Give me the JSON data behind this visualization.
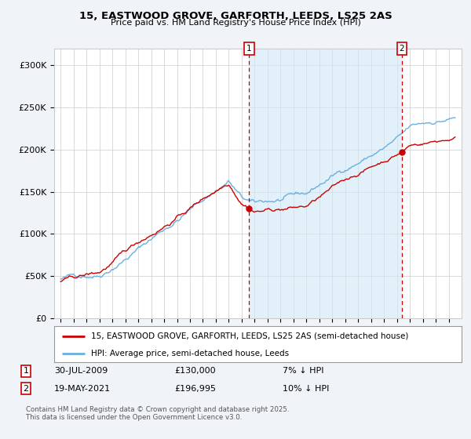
{
  "title_line1": "15, EASTWOOD GROVE, GARFORTH, LEEDS, LS25 2AS",
  "title_line2": "Price paid vs. HM Land Registry's House Price Index (HPI)",
  "hpi_color": "#6ab0de",
  "price_color": "#cc0000",
  "shade_color": "#d0e8f5",
  "background_color": "#f0f4f8",
  "plot_bg_color": "#ffffff",
  "grid_color": "#cccccc",
  "ylim": [
    0,
    320000
  ],
  "yticks": [
    0,
    50000,
    100000,
    150000,
    200000,
    250000,
    300000
  ],
  "ytick_labels": [
    "£0",
    "£50K",
    "£100K",
    "£150K",
    "£200K",
    "£250K",
    "£300K"
  ],
  "sale1_price": 130000,
  "sale1_year": 2009.58,
  "sale2_price": 196995,
  "sale2_year": 2021.38,
  "legend_property": "15, EASTWOOD GROVE, GARFORTH, LEEDS, LS25 2AS (semi-detached house)",
  "legend_hpi": "HPI: Average price, semi-detached house, Leeds",
  "footnote": "Contains HM Land Registry data © Crown copyright and database right 2025.\nThis data is licensed under the Open Government Licence v3.0.",
  "xstart": 1995,
  "xend": 2025
}
